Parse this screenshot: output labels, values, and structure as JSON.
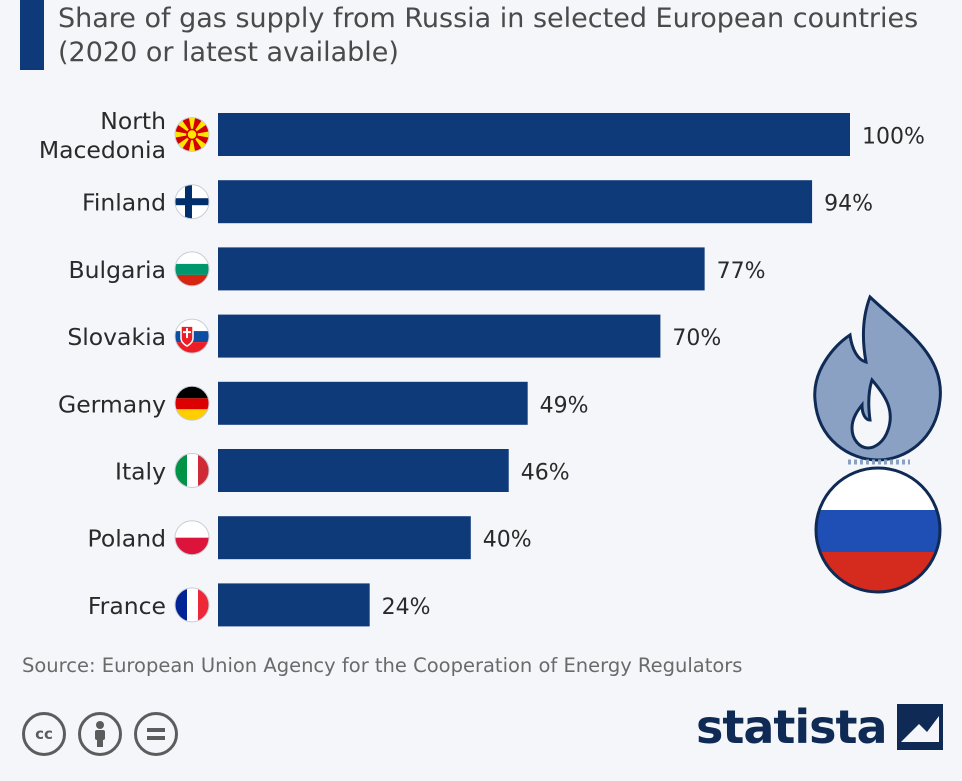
{
  "title": "Share of gas supply from Russia in selected European countries (2020 or latest available)",
  "source": "Source: European Union Agency for the Cooperation of Energy Regulators",
  "brand": "statista",
  "colors": {
    "bar": "#0f3a7a",
    "title_accent": "#0f3a7a",
    "flame": "#8ba1c4",
    "background": "#f4f6fa"
  },
  "icons": [
    "cc-icon",
    "by-icon",
    "nd-icon",
    "gas-flame-icon",
    "russia-flag-icon",
    "statista-logo-icon"
  ],
  "chart_data": {
    "type": "bar",
    "orientation": "horizontal",
    "categories": [
      [
        "North",
        "Macedonia"
      ],
      [
        "Finland"
      ],
      [
        "Bulgaria"
      ],
      [
        "Slovakia"
      ],
      [
        "Germany"
      ],
      [
        "Italy"
      ],
      [
        "Poland"
      ],
      [
        "France"
      ]
    ],
    "values": [
      100,
      94,
      77,
      70,
      49,
      46,
      40,
      24
    ],
    "value_labels": [
      "100%",
      "94%",
      "77%",
      "70%",
      "49%",
      "46%",
      "40%",
      "24%"
    ],
    "flags": [
      "north-macedonia",
      "finland",
      "bulgaria",
      "slovakia",
      "germany",
      "italy",
      "poland",
      "france"
    ],
    "xlim": [
      0,
      100
    ],
    "grid": false,
    "legend": "none"
  }
}
